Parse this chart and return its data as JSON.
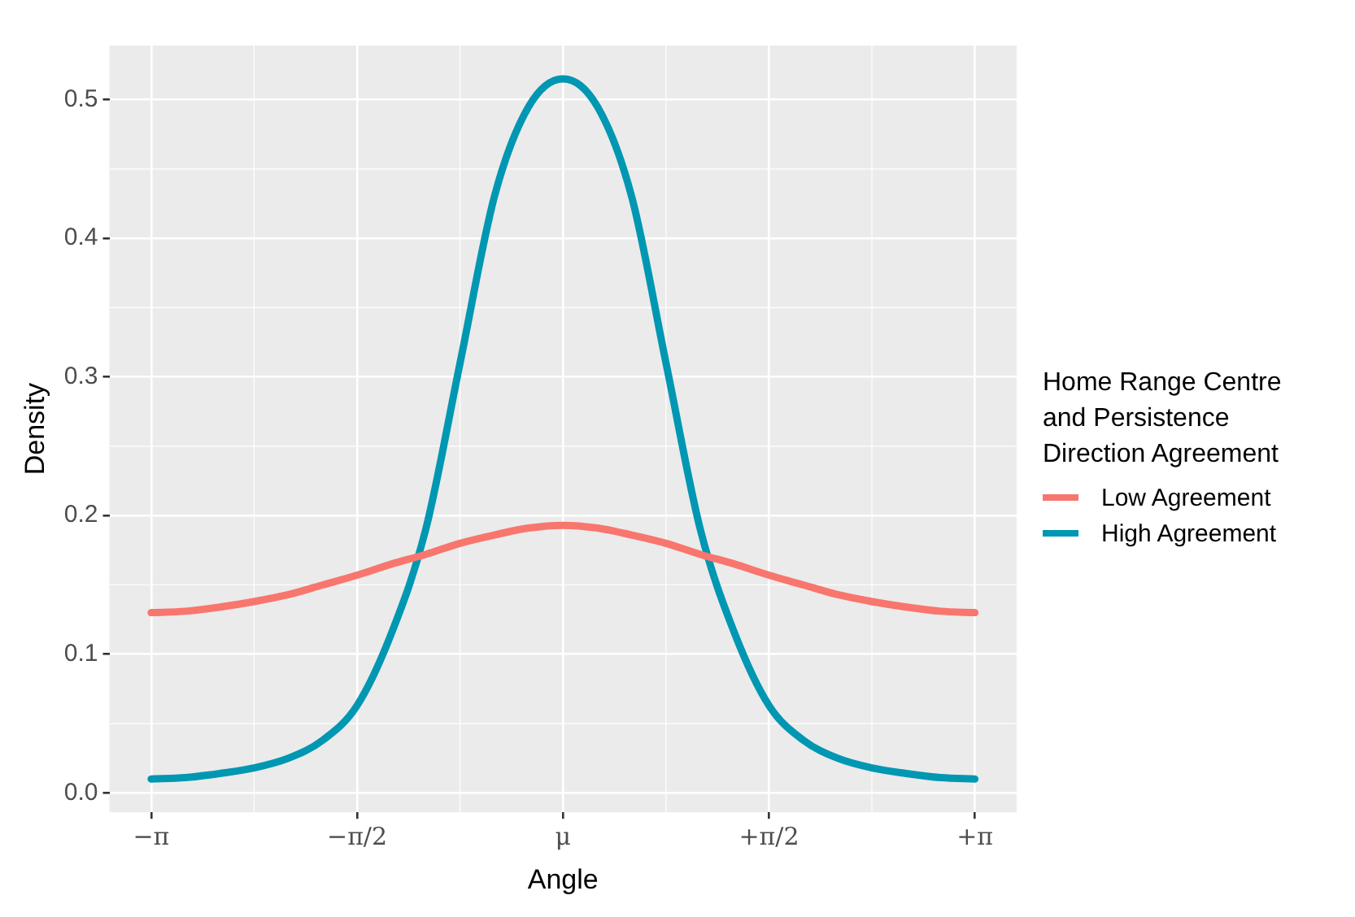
{
  "chart_data": {
    "type": "line",
    "xlabel": "Angle",
    "ylabel": "Density",
    "legend_title": "Home Range Centre\nand Persistence\nDirection Agreement",
    "x": [
      -3.14159,
      -2.87979,
      -2.61799,
      -2.35619,
      -2.0944,
      -1.8326,
      -1.5708,
      -1.309,
      -1.0472,
      -0.7854,
      -0.5236,
      -0.2618,
      0,
      0.2618,
      0.5236,
      0.7854,
      1.0472,
      1.309,
      1.5708,
      1.8326,
      2.0944,
      2.35619,
      2.61799,
      2.87979,
      3.14159
    ],
    "series": [
      {
        "name": "Low Agreement",
        "color": "#f8766d",
        "values": [
          0.13,
          0.131,
          0.134,
          0.138,
          0.143,
          0.15,
          0.157,
          0.165,
          0.172,
          0.18,
          0.186,
          0.191,
          0.193,
          0.191,
          0.186,
          0.18,
          0.172,
          0.165,
          0.157,
          0.15,
          0.143,
          0.138,
          0.134,
          0.131,
          0.13
        ]
      },
      {
        "name": "High Agreement",
        "color": "#0097b2",
        "values": [
          0.01,
          0.011,
          0.014,
          0.018,
          0.025,
          0.038,
          0.063,
          0.115,
          0.19,
          0.31,
          0.43,
          0.495,
          0.515,
          0.495,
          0.43,
          0.31,
          0.19,
          0.115,
          0.063,
          0.038,
          0.025,
          0.018,
          0.014,
          0.011,
          0.01
        ]
      }
    ],
    "xlim": [
      -3.46,
      3.46
    ],
    "xticks": [
      {
        "value": -3.14159,
        "label": "−π"
      },
      {
        "value": -1.5708,
        "label": "−π/2"
      },
      {
        "value": 0,
        "label": "μ"
      },
      {
        "value": 1.5708,
        "label": "+π/2"
      },
      {
        "value": 3.14159,
        "label": "+π"
      }
    ],
    "ylim": [
      -0.014,
      0.539
    ],
    "yticks": [
      {
        "value": 0,
        "label": "0.0"
      },
      {
        "value": 0.1,
        "label": "0.1"
      },
      {
        "value": 0.2,
        "label": "0.2"
      },
      {
        "value": 0.3,
        "label": "0.3"
      },
      {
        "value": 0.4,
        "label": "0.4"
      },
      {
        "value": 0.5,
        "label": "0.5"
      }
    ],
    "grid": true,
    "legend": "right",
    "marker": "none",
    "line_style": "solid"
  }
}
